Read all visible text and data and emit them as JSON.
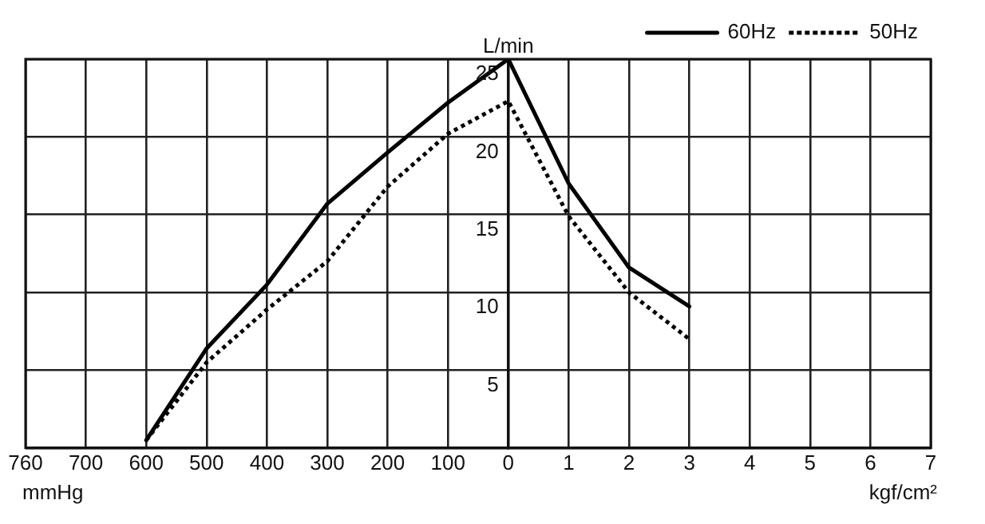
{
  "chart_data": {
    "type": "line",
    "ylabel": "L/min",
    "xlabel": "kgf/cm²",
    "annotations": [
      "mmHg"
    ],
    "categories": [
      "760",
      "700",
      "600",
      "500",
      "400",
      "300",
      "200",
      "100",
      "0",
      "1",
      "2",
      "3",
      "4",
      "5",
      "6",
      "7"
    ],
    "series": [
      {
        "name": "60Hz",
        "color": "#000000",
        "line_style": "solid",
        "values": [
          null,
          null,
          0.5,
          6.4,
          10.5,
          15.7,
          19,
          22.2,
          25,
          17,
          11.6,
          9.1,
          null,
          null,
          null,
          null
        ]
      },
      {
        "name": "50Hz",
        "color": "#000000",
        "line_style": "dotted",
        "values": [
          null,
          null,
          0.5,
          5.5,
          8.9,
          12,
          16.8,
          20.2,
          22.3,
          14.9,
          10,
          7,
          null,
          null,
          null,
          null
        ]
      }
    ],
    "ylim": [
      0,
      25
    ],
    "yticks": [
      {
        "value": 0,
        "label": null
      },
      5,
      10,
      15,
      20,
      25
    ],
    "grid": true,
    "legend": "top right",
    "marker": "none"
  }
}
